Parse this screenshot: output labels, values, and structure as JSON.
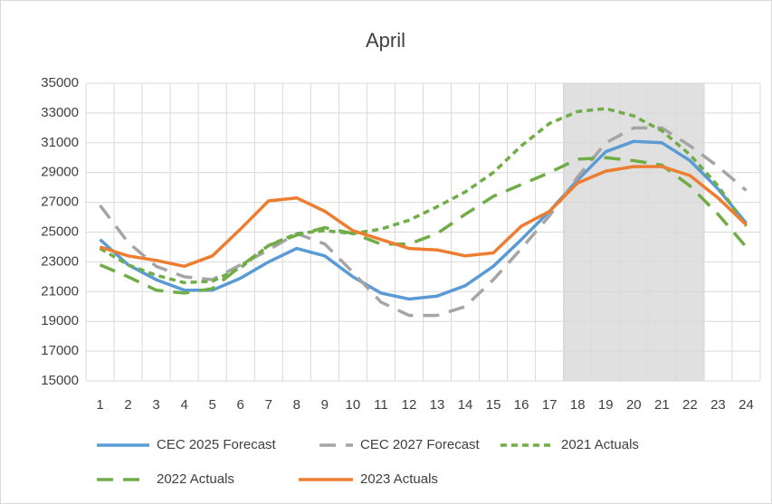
{
  "chart_data": {
    "type": "line",
    "title": "April",
    "categories": [
      1,
      2,
      3,
      4,
      5,
      6,
      7,
      8,
      9,
      10,
      11,
      12,
      13,
      14,
      15,
      16,
      17,
      18,
      19,
      20,
      21,
      22,
      23,
      24
    ],
    "series": [
      {
        "name": "CEC 2025 Forecast",
        "color": "#5b9bd5",
        "dash": "solid",
        "values": [
          24500,
          22800,
          21800,
          21100,
          21100,
          21900,
          23000,
          23900,
          23400,
          22000,
          20900,
          20500,
          20700,
          21400,
          22700,
          24500,
          26400,
          28500,
          30400,
          31100,
          31000,
          29800,
          27900,
          25600
        ]
      },
      {
        "name": "CEC 2027 Forecast",
        "color": "#a5a5a5",
        "dash": "long",
        "values": [
          26800,
          24300,
          22700,
          22000,
          21800,
          22800,
          23800,
          24900,
          24200,
          22300,
          20300,
          19400,
          19400,
          20000,
          21800,
          23900,
          26100,
          28700,
          31000,
          32000,
          32000,
          30800,
          29400,
          27800
        ]
      },
      {
        "name": "2021 Actuals",
        "color": "#70ad47",
        "dash": "short",
        "values": [
          23900,
          22800,
          22100,
          21600,
          21700,
          22600,
          24100,
          24900,
          25100,
          24900,
          25200,
          25800,
          26700,
          27700,
          29000,
          30800,
          32300,
          33100,
          33300,
          32800,
          31800,
          30200,
          28100,
          25400
        ]
      },
      {
        "name": "2022 Actuals",
        "color": "#70ad47",
        "dash": "long",
        "values": [
          22800,
          22000,
          21100,
          20900,
          21200,
          22700,
          24100,
          24800,
          25300,
          24900,
          24200,
          24200,
          24900,
          26200,
          27400,
          28200,
          29000,
          29900,
          30000,
          29800,
          29500,
          28100,
          26200,
          24000
        ]
      },
      {
        "name": "2023 Actuals",
        "color": "#ed7d31",
        "dash": "solid",
        "values": [
          24000,
          23400,
          23100,
          22700,
          23400,
          25200,
          27100,
          27300,
          26400,
          25100,
          24500,
          23900,
          23800,
          23400,
          23600,
          25400,
          26400,
          28300,
          29100,
          29400,
          29400,
          28800,
          27300,
          25500
        ]
      }
    ],
    "ylim": [
      15000,
      35000
    ],
    "yticks": [
      15000,
      17000,
      19000,
      21000,
      23000,
      25000,
      27000,
      29000,
      31000,
      33000,
      35000
    ],
    "grid": true,
    "shade": {
      "from": 18,
      "to": 22,
      "color": "#e0e0e0"
    },
    "legend": "bottom"
  }
}
